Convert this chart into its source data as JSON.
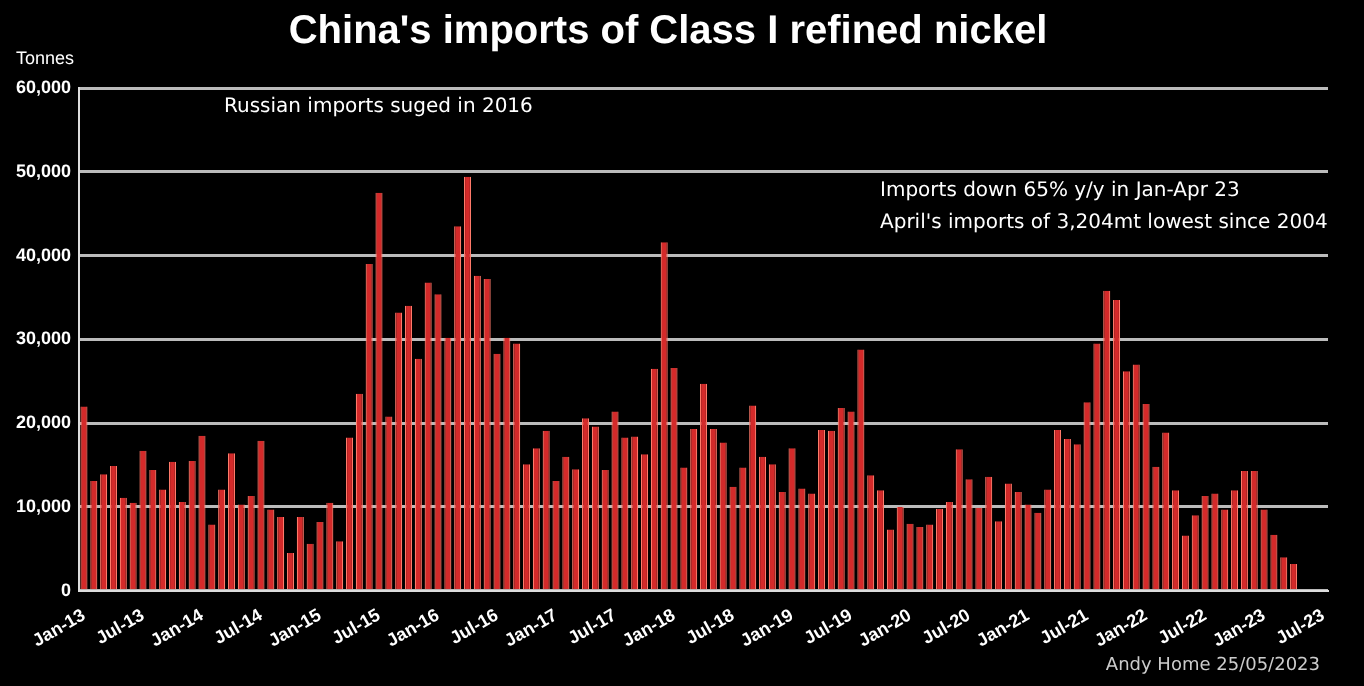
{
  "chart_data": {
    "type": "bar",
    "title": "China's imports of Class I refined nickel",
    "ylabel": "Tonnes",
    "annotations": [
      "Russian imports suged in 2016",
      "Imports down 65% y/y in Jan-Apr 23\nApril's imports of 3,204mt lowest since 2004",
      "Andy Home 25/05/2023"
    ],
    "categories": [
      "Jan-13",
      null,
      null,
      null,
      null,
      null,
      "Jul-13",
      null,
      null,
      null,
      null,
      null,
      "Jan-14",
      null,
      null,
      null,
      null,
      null,
      "Jul-14",
      null,
      null,
      null,
      null,
      null,
      "Jan-15",
      null,
      null,
      null,
      null,
      null,
      "Jul-15",
      null,
      null,
      null,
      null,
      null,
      "Jan-16",
      null,
      null,
      null,
      null,
      null,
      "Jul-16",
      null,
      null,
      null,
      null,
      null,
      "Jan-17",
      null,
      null,
      null,
      null,
      null,
      "Jul-17",
      null,
      null,
      null,
      null,
      null,
      "Jan-18",
      null,
      null,
      null,
      null,
      null,
      "Jul-18",
      null,
      null,
      null,
      null,
      null,
      "Jan-19",
      null,
      null,
      null,
      null,
      null,
      "Jul-19",
      null,
      null,
      null,
      null,
      null,
      "Jan-20",
      null,
      null,
      null,
      null,
      null,
      "Jul-20",
      null,
      null,
      null,
      null,
      null,
      "Jan-21",
      null,
      null,
      null,
      null,
      null,
      "Jul-21",
      null,
      null,
      null,
      null,
      null,
      "Jan-22",
      null,
      null,
      null,
      null,
      null,
      "Jul-22",
      null,
      null,
      null,
      null,
      null,
      "Jan-23",
      null,
      null,
      null,
      null,
      null,
      "Jul-23"
    ],
    "values": [
      22000,
      13100,
      13900,
      14900,
      11100,
      10500,
      16700,
      14400,
      12100,
      15400,
      10600,
      15500,
      18500,
      7900,
      12100,
      16400,
      10300,
      11300,
      17900,
      9700,
      8800,
      4500,
      8800,
      5600,
      8200,
      10500,
      5900,
      18300,
      23500,
      39000,
      47500,
      20800,
      33200,
      34000,
      27700,
      36800,
      35400,
      30200,
      43500,
      49400,
      37600,
      37200,
      28300,
      30200,
      29500,
      15100,
      17000,
      19100,
      13100,
      16000,
      14500,
      20600,
      19600,
      14400,
      21400,
      18300,
      18400,
      16300,
      26500,
      41600,
      26600,
      14700,
      19300,
      24700,
      19300,
      17700,
      12400,
      14700,
      22100,
      16000,
      15100,
      11800,
      17000,
      12200,
      11600,
      19200,
      19100,
      21800,
      21400,
      28800,
      13800,
      12000,
      7300,
      10000,
      8000,
      7600,
      7900,
      9800,
      10600,
      16900,
      13300,
      9900,
      13600,
      8300,
      12800,
      11800,
      10300,
      9300,
      12100,
      19200,
      18100,
      17500,
      22500,
      29500,
      35800,
      34700,
      26200,
      27000,
      22300,
      14800,
      18900,
      12000,
      6600,
      9000,
      11300,
      11600,
      9700,
      12000,
      14300,
      14300,
      9700,
      6700,
      4000,
      3204,
      null,
      null,
      null
    ],
    "color": "#d42a2a",
    "ylim": [
      0,
      60000
    ],
    "yticks": [
      0,
      {
        "value": 10000,
        "label": "10,000"
      },
      {
        "value": 20000,
        "label": "20,000"
      },
      {
        "value": 30000,
        "label": "30,000"
      },
      {
        "value": 40000,
        "label": "40,000"
      },
      {
        "value": 50000,
        "label": "50,000"
      },
      {
        "value": 60000,
        "label": "60,000"
      }
    ],
    "grid": "y"
  }
}
